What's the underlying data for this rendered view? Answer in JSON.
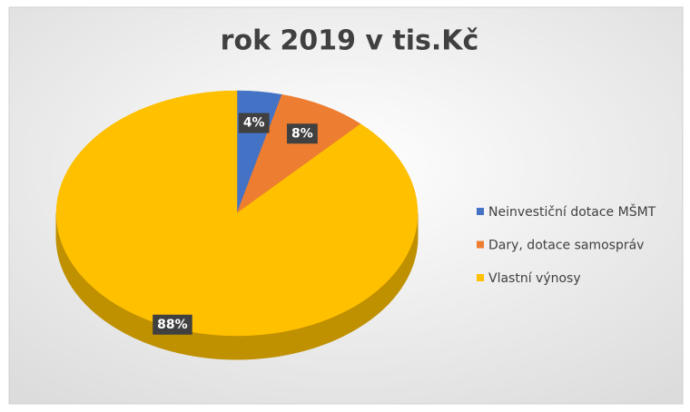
{
  "chart_data": {
    "type": "pie",
    "title": "rok 2019 v tis.Kč",
    "categories": [
      "Neinvestiční dotace MŠMT",
      "Dary, dotace samospráv",
      "Vlastní výnosy"
    ],
    "values": [
      4,
      8,
      88
    ],
    "value_labels": [
      "4%",
      "8%",
      "88%"
    ],
    "colors": [
      "#4472c4",
      "#ed7d31",
      "#ffc000"
    ],
    "legend": "right"
  }
}
